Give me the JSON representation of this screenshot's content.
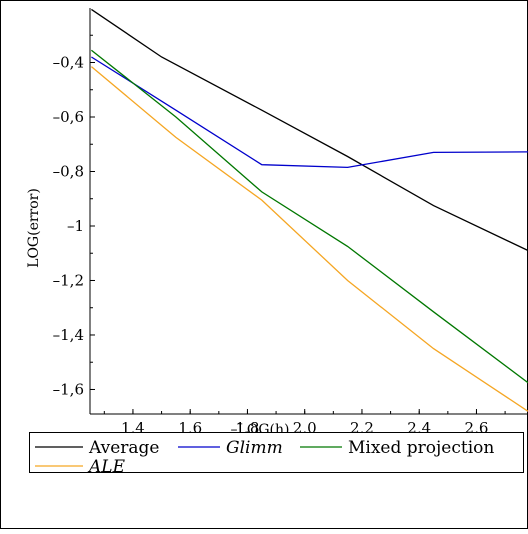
{
  "chart_data": {
    "type": "line",
    "title": "",
    "xlabel": "–LOG(h)",
    "ylabel": "LOG(error)",
    "xlim": [
      1.25,
      2.78
    ],
    "ylim": [
      -1.69,
      -0.2
    ],
    "x_ticks": [
      1.4,
      1.6,
      1.8,
      2.0,
      2.2,
      2.4,
      2.6
    ],
    "x_tick_labels": [
      "1,4",
      "1,6",
      "1,8",
      "2,0",
      "2,2",
      "2,4",
      "2,6"
    ],
    "y_ticks": [
      -0.4,
      -0.6,
      -0.8,
      -1.0,
      -1.2,
      -1.4,
      -1.6
    ],
    "y_tick_labels": [
      "–0,4",
      "–0,6",
      "–0,8",
      "–1",
      "–1,2",
      "–1,4",
      "–1,6"
    ],
    "grid": false,
    "legend_position": "bottom",
    "series": [
      {
        "name": "Average",
        "italic": false,
        "color": "#000000",
        "x": [
          1.255,
          1.5,
          1.85,
          2.15,
          2.45,
          2.78
        ],
        "y": [
          -0.205,
          -0.38,
          -0.575,
          -0.745,
          -0.925,
          -1.09
        ]
      },
      {
        "name": "Glimm",
        "italic": true,
        "color": "#0000cc",
        "x": [
          1.255,
          1.55,
          1.85,
          2.15,
          2.45,
          2.78
        ],
        "y": [
          -0.38,
          -0.575,
          -0.775,
          -0.785,
          -0.73,
          -0.728
        ]
      },
      {
        "name": "Mixed projection",
        "italic": false,
        "color": "#007700",
        "x": [
          1.255,
          1.55,
          1.85,
          2.15,
          2.45,
          2.78
        ],
        "y": [
          -0.355,
          -0.6,
          -0.875,
          -1.075,
          -1.315,
          -1.575
        ]
      },
      {
        "name": "ALE",
        "italic": true,
        "color": "#f5a623",
        "x": [
          1.255,
          1.55,
          1.85,
          2.15,
          2.45,
          2.78
        ],
        "y": [
          -0.415,
          -0.675,
          -0.905,
          -1.2,
          -1.45,
          -1.68
        ]
      }
    ]
  }
}
